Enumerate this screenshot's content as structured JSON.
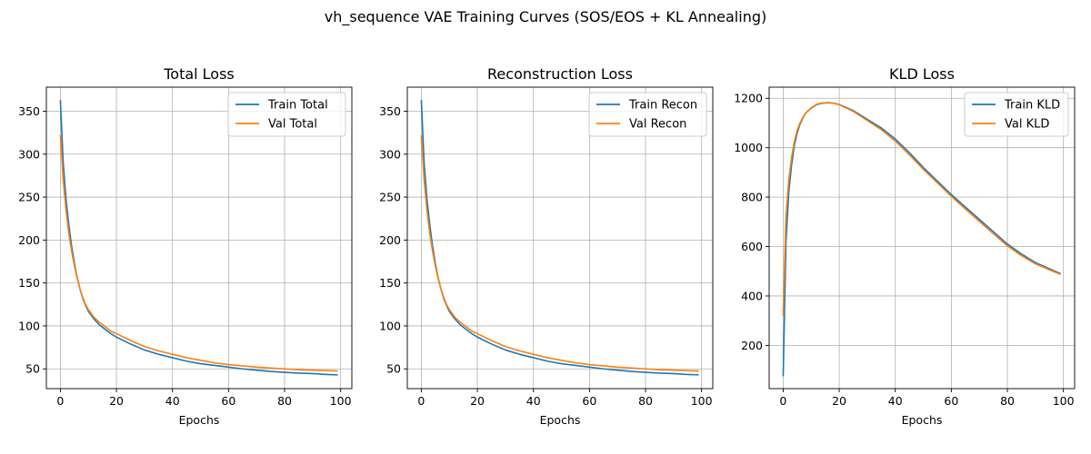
{
  "figure": {
    "title": "vh_sequence VAE Training Curves (SOS/EOS + KL Annealing)"
  },
  "colors": {
    "train": "#1f77b4",
    "val": "#ff7f0e",
    "grid": "#b0b0b0"
  },
  "chart_data": [
    {
      "type": "line",
      "title": "Total Loss",
      "xlabel": "Epochs",
      "ylabel": "",
      "xlim": [
        -5,
        104
      ],
      "ylim": [
        27,
        378
      ],
      "xticks": [
        0,
        20,
        40,
        60,
        80,
        100
      ],
      "yticks": [
        50,
        100,
        150,
        200,
        250,
        300,
        350
      ],
      "grid": true,
      "legend": "top-right",
      "series": [
        {
          "name": "Train Total",
          "x": [
            0,
            1,
            2,
            3,
            4,
            5,
            6,
            7,
            8,
            9,
            10,
            12,
            14,
            16,
            18,
            20,
            25,
            30,
            35,
            40,
            45,
            50,
            55,
            60,
            65,
            70,
            75,
            80,
            85,
            90,
            95,
            99
          ],
          "y": [
            363,
            290,
            248,
            218,
            193,
            173,
            156,
            143,
            132,
            124,
            117,
            108,
            101,
            96,
            91,
            87,
            79,
            72,
            67,
            63,
            59,
            56,
            54,
            52,
            50,
            48.5,
            47,
            46,
            45,
            44.5,
            43.5,
            43
          ]
        },
        {
          "name": "Val Total",
          "x": [
            0,
            1,
            2,
            3,
            4,
            5,
            6,
            7,
            8,
            9,
            10,
            12,
            14,
            16,
            18,
            20,
            25,
            30,
            35,
            40,
            45,
            50,
            55,
            60,
            65,
            70,
            75,
            80,
            85,
            90,
            95,
            99
          ],
          "y": [
            322,
            270,
            235,
            208,
            187,
            170,
            155,
            143,
            133,
            125,
            119,
            110,
            104,
            99,
            94,
            91,
            83,
            76,
            71,
            67,
            63,
            60,
            57,
            55,
            53.5,
            52,
            51,
            50,
            49,
            48.5,
            48,
            47.5
          ]
        }
      ]
    },
    {
      "type": "line",
      "title": "Reconstruction Loss",
      "xlabel": "Epochs",
      "ylabel": "",
      "xlim": [
        -5,
        104
      ],
      "ylim": [
        27,
        378
      ],
      "xticks": [
        0,
        20,
        40,
        60,
        80,
        100
      ],
      "yticks": [
        50,
        100,
        150,
        200,
        250,
        300,
        350
      ],
      "grid": true,
      "legend": "top-right",
      "series": [
        {
          "name": "Train Recon",
          "x": [
            0,
            1,
            2,
            3,
            4,
            5,
            6,
            7,
            8,
            9,
            10,
            12,
            14,
            16,
            18,
            20,
            25,
            30,
            35,
            40,
            45,
            50,
            55,
            60,
            65,
            70,
            75,
            80,
            85,
            90,
            95,
            99
          ],
          "y": [
            363,
            290,
            248,
            218,
            193,
            173,
            156,
            143,
            132,
            124,
            117,
            108,
            101,
            96,
            91,
            87,
            79,
            72,
            67,
            63,
            59,
            56,
            54,
            52,
            50,
            48.5,
            47,
            46,
            45,
            44.5,
            43.5,
            43
          ]
        },
        {
          "name": "Val Recon",
          "x": [
            0,
            1,
            2,
            3,
            4,
            5,
            6,
            7,
            8,
            9,
            10,
            12,
            14,
            16,
            18,
            20,
            25,
            30,
            35,
            40,
            45,
            50,
            55,
            60,
            65,
            70,
            75,
            80,
            85,
            90,
            95,
            99
          ],
          "y": [
            322,
            270,
            235,
            208,
            187,
            170,
            155,
            143,
            133,
            125,
            119,
            110,
            104,
            99,
            94,
            91,
            83,
            76,
            71,
            67,
            63,
            60,
            57,
            55,
            53.5,
            52,
            51,
            50,
            49,
            48.5,
            48,
            47.5
          ]
        }
      ]
    },
    {
      "type": "line",
      "title": "KLD Loss",
      "xlabel": "Epochs",
      "ylabel": "",
      "xlim": [
        -5,
        104
      ],
      "ylim": [
        25,
        1245
      ],
      "xticks": [
        0,
        20,
        40,
        60,
        80,
        100
      ],
      "yticks": [
        200,
        400,
        600,
        800,
        1000,
        1200
      ],
      "grid": true,
      "legend": "top-right",
      "series": [
        {
          "name": "Train KLD",
          "x": [
            0,
            1,
            2,
            3,
            4,
            5,
            6,
            7,
            8,
            10,
            12,
            14,
            16,
            18,
            20,
            22,
            25,
            30,
            35,
            40,
            45,
            50,
            55,
            60,
            65,
            70,
            75,
            80,
            85,
            90,
            95,
            99
          ],
          "y": [
            75,
            620,
            820,
            930,
            1010,
            1060,
            1095,
            1120,
            1140,
            1160,
            1175,
            1180,
            1182,
            1180,
            1175,
            1165,
            1150,
            1115,
            1080,
            1035,
            980,
            920,
            865,
            810,
            760,
            710,
            660,
            610,
            570,
            535,
            510,
            490
          ]
        },
        {
          "name": "Val KLD",
          "x": [
            0,
            1,
            2,
            3,
            4,
            5,
            6,
            7,
            8,
            10,
            12,
            14,
            16,
            18,
            20,
            22,
            25,
            30,
            35,
            40,
            45,
            50,
            55,
            60,
            65,
            70,
            75,
            80,
            85,
            90,
            95,
            99
          ],
          "y": [
            320,
            720,
            870,
            960,
            1025,
            1070,
            1100,
            1122,
            1140,
            1162,
            1176,
            1181,
            1183,
            1180,
            1174,
            1163,
            1147,
            1110,
            1073,
            1027,
            972,
            912,
            858,
            803,
            752,
            702,
            652,
            603,
            563,
            530,
            506,
            487
          ]
        }
      ]
    }
  ]
}
